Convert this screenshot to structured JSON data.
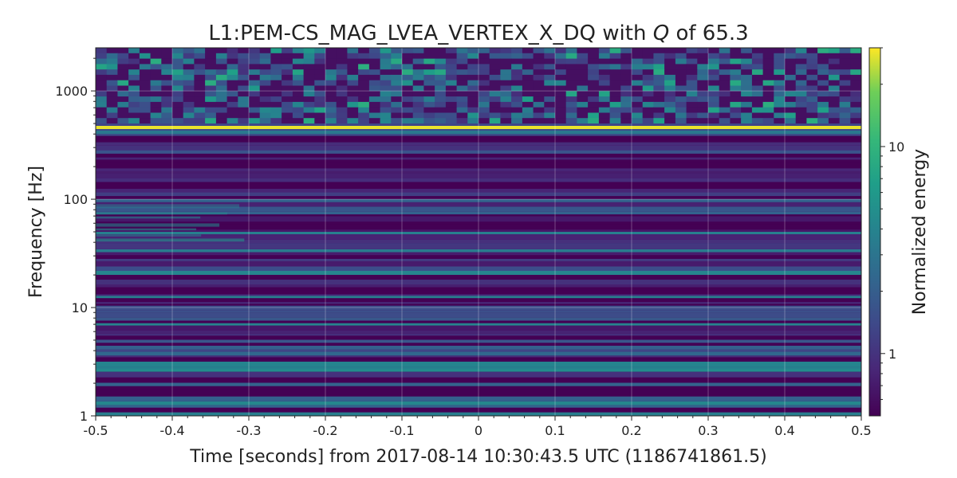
{
  "chart_data": {
    "type": "heatmap",
    "title": {
      "prefix": "L1:PEM-CS_MAG_LVEA_VERTEX_X_DQ with ",
      "q_symbol": "Q",
      "suffix": " of 65.3"
    },
    "xlabel": "Time [seconds] from 2017-08-14 10:30:43.5 UTC (1186741861.5)",
    "ylabel": "Frequency [Hz]",
    "colorbar_label": "Normalized energy",
    "x_ticks": [
      {
        "value": -0.5,
        "label": "-0.5"
      },
      {
        "value": -0.4,
        "label": "-0.4"
      },
      {
        "value": -0.3,
        "label": "-0.3"
      },
      {
        "value": -0.2,
        "label": "-0.2"
      },
      {
        "value": -0.1,
        "label": "-0.1"
      },
      {
        "value": 0,
        "label": "0"
      },
      {
        "value": 0.1,
        "label": "0.1"
      },
      {
        "value": 0.2,
        "label": "0.2"
      },
      {
        "value": 0.3,
        "label": "0.3"
      },
      {
        "value": 0.4,
        "label": "0.4"
      },
      {
        "value": 0.5,
        "label": "0.5"
      }
    ],
    "y_ticks": [
      {
        "value": 1,
        "label": "1"
      },
      {
        "value": 10,
        "label": "10"
      },
      {
        "value": 100,
        "label": "100"
      },
      {
        "value": 1000,
        "label": "1000"
      }
    ],
    "colorbar_ticks": [
      {
        "value": 1,
        "label": "1"
      },
      {
        "value": 10,
        "label": "10"
      }
    ],
    "xlim": [
      -0.5,
      0.5
    ],
    "ylim": [
      1,
      2500
    ],
    "y_scale": "log",
    "color_range": [
      0.5,
      30
    ],
    "color_scale": "log",
    "colormap": "viridis",
    "grid": true,
    "features": [
      {
        "kind": "narrowband-line",
        "frequency": 460,
        "energy": 28
      },
      {
        "kind": "broadband-noise",
        "frequency_range": [
          500,
          2500
        ],
        "energy_range": [
          0.6,
          9
        ]
      },
      {
        "kind": "low-frequency-bands",
        "frequency_range": [
          1,
          450
        ],
        "energy_range": [
          0.5,
          6
        ]
      },
      {
        "kind": "transient",
        "time_range": [
          -0.5,
          -0.3
        ],
        "frequency_range": [
          40,
          90
        ],
        "energy": 6
      }
    ]
  }
}
